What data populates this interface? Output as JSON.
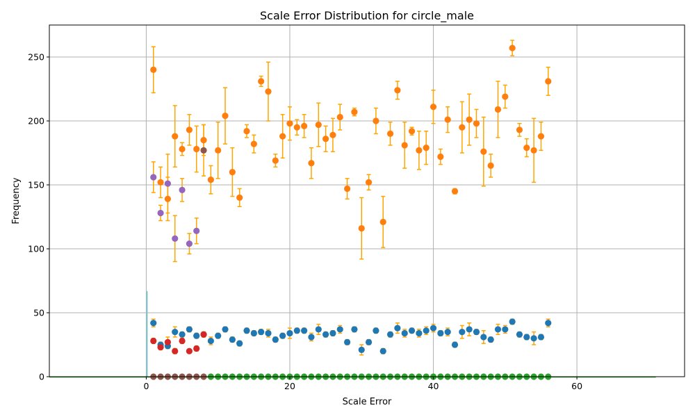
{
  "chart_data": {
    "type": "scatter",
    "title": "Scale Error Distribution for circle_male",
    "xlabel": "Scale Error",
    "ylabel": "Frequency",
    "xlim": [
      -13.5,
      75
    ],
    "ylim": [
      0,
      275
    ],
    "xticks": [
      0,
      20,
      40,
      60
    ],
    "yticks": [
      0,
      50,
      100,
      150,
      200,
      250
    ],
    "grid": true,
    "colors": {
      "errorbar": "#ffa500",
      "spike": "#7fc7cf",
      "baseline": "#2ca02c",
      "blue": "#1f77b4",
      "orange": "#ff7f0e",
      "green": "#2ca02c",
      "red": "#d62728",
      "purple": "#9467bd",
      "brown": "#8c564b"
    },
    "spike": {
      "x": 0.1,
      "y": 67
    },
    "baseline_range": [
      -13.5,
      71
    ],
    "series": [
      {
        "color_key": "orange",
        "x": [
          1,
          2,
          3,
          4,
          5,
          6,
          7,
          8,
          9,
          10,
          11,
          12,
          13,
          14,
          15,
          16,
          17,
          18,
          19,
          20,
          21,
          22,
          23,
          24,
          25,
          26,
          27,
          28,
          29,
          30,
          31,
          32,
          33,
          34,
          35,
          36,
          37,
          38,
          39,
          40,
          41,
          42,
          43,
          44,
          45,
          46,
          47,
          48,
          49,
          50,
          51,
          52,
          53,
          54,
          55,
          56
        ],
        "y": [
          240,
          152,
          139,
          188,
          178,
          193,
          178,
          185,
          154,
          177,
          204,
          160,
          140,
          192,
          182,
          231,
          223,
          169,
          188,
          198,
          195,
          196,
          167,
          197,
          186,
          189,
          203,
          147,
          207,
          116,
          152,
          200,
          121,
          190,
          224,
          181,
          192,
          177,
          179,
          211,
          172,
          201,
          145,
          195,
          201,
          198,
          176,
          165,
          209,
          219,
          257,
          193,
          179,
          177,
          188,
          231
        ],
        "err": [
          18,
          12,
          17,
          24,
          5,
          12,
          18,
          12,
          11,
          22,
          22,
          19,
          7,
          5,
          7,
          4,
          23,
          5,
          17,
          13,
          6,
          9,
          12,
          17,
          10,
          13,
          10,
          8,
          3,
          24,
          6,
          10,
          20,
          9,
          7,
          18,
          3,
          15,
          13,
          13,
          6,
          10,
          2,
          20,
          20,
          11,
          27,
          9,
          22,
          9,
          6,
          5,
          7,
          25,
          11,
          11
        ]
      },
      {
        "color_key": "blue",
        "x": [
          1,
          2,
          3,
          4,
          5,
          6,
          7,
          8,
          9,
          10,
          11,
          12,
          13,
          14,
          15,
          16,
          17,
          18,
          19,
          20,
          21,
          22,
          23,
          24,
          25,
          26,
          27,
          28,
          29,
          30,
          31,
          32,
          33,
          34,
          35,
          36,
          37,
          38,
          39,
          40,
          41,
          42,
          43,
          44,
          45,
          46,
          47,
          48,
          49,
          50,
          51,
          52,
          53,
          54,
          55,
          56
        ],
        "y": [
          42,
          25,
          24,
          35,
          33,
          37,
          32,
          33,
          28,
          32,
          37,
          29,
          26,
          36,
          34,
          35,
          34,
          29,
          32,
          34,
          36,
          36,
          31,
          37,
          33,
          34,
          37,
          27,
          37,
          21,
          27,
          36,
          20,
          33,
          38,
          34,
          36,
          34,
          36,
          38,
          34,
          35,
          25,
          35,
          37,
          35,
          31,
          29,
          37,
          37,
          43,
          33,
          31,
          30,
          31,
          42
        ],
        "err": [
          3,
          2,
          2,
          4,
          2,
          2,
          2,
          2,
          3,
          2,
          2,
          2,
          2,
          2,
          2,
          2,
          3,
          2,
          2,
          4,
          2,
          2,
          3,
          4,
          2,
          2,
          3,
          2,
          2,
          4,
          2,
          2,
          2,
          2,
          4,
          3,
          2,
          3,
          3,
          3,
          2,
          3,
          2,
          5,
          5,
          2,
          5,
          2,
          4,
          3,
          2,
          2,
          2,
          5,
          2,
          3
        ]
      },
      {
        "color_key": "purple",
        "x": [
          1,
          2,
          3,
          4,
          5,
          6,
          7
        ],
        "y": [
          156,
          128,
          151,
          108,
          146,
          104,
          114
        ],
        "err": [
          12,
          6,
          23,
          18,
          9,
          8,
          10
        ]
      },
      {
        "color_key": "brown",
        "x": [
          8
        ],
        "y": [
          177
        ],
        "err": [
          20
        ]
      },
      {
        "color_key": "red",
        "x": [
          1,
          2,
          3,
          4,
          5,
          6,
          7,
          8
        ],
        "y": [
          28,
          23,
          27,
          20,
          28,
          20,
          22,
          33
        ],
        "err": [
          2,
          2,
          4,
          2,
          2,
          1,
          2,
          2
        ]
      },
      {
        "color_key": "brown",
        "x": [
          1,
          2,
          3,
          4,
          5,
          6,
          7,
          8
        ],
        "y": [
          0,
          0,
          0,
          0,
          0,
          0,
          0,
          0
        ],
        "err": null
      },
      {
        "color_key": "green",
        "x": [
          9,
          10,
          11,
          12,
          13,
          14,
          15,
          16,
          17,
          18,
          19,
          20,
          21,
          22,
          23,
          24,
          25,
          26,
          27,
          28,
          29,
          30,
          31,
          32,
          33,
          34,
          35,
          36,
          37,
          38,
          39,
          40,
          41,
          42,
          43,
          44,
          45,
          46,
          47,
          48,
          49,
          50,
          51,
          52,
          53,
          54,
          55,
          56
        ],
        "y": [
          0,
          0,
          0,
          0,
          0,
          0,
          0,
          0,
          0,
          0,
          0,
          0,
          0,
          0,
          0,
          0,
          0,
          0,
          0,
          0,
          0,
          0,
          0,
          0,
          0,
          0,
          0,
          0,
          0,
          0,
          0,
          0,
          0,
          0,
          0,
          0,
          0,
          0,
          0,
          0,
          0,
          0,
          0,
          0,
          0,
          0,
          0,
          0
        ],
        "err": null
      }
    ]
  }
}
